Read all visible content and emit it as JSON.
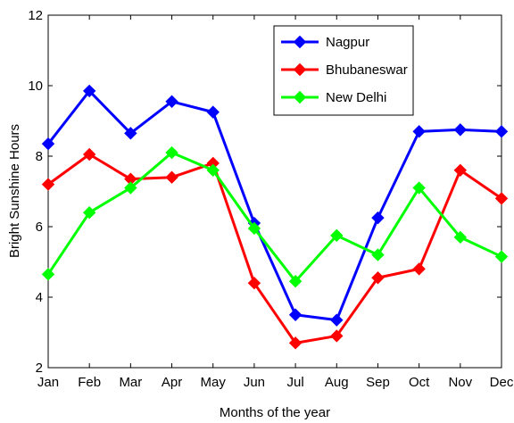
{
  "chart_data": {
    "type": "line",
    "xlabel": "Months of the year",
    "ylabel": "Bright Sunshine Hours",
    "categories": [
      "Jan",
      "Feb",
      "Mar",
      "Apr",
      "May",
      "Jun",
      "Jul",
      "Aug",
      "Sep",
      "Oct",
      "Nov",
      "Dec"
    ],
    "ylim": [
      2,
      12
    ],
    "yticks": [
      2,
      4,
      6,
      8,
      10,
      12
    ],
    "grid": false,
    "legend_position": "top-right",
    "marker": "diamond",
    "series": [
      {
        "name": "Nagpur",
        "color": "#0000ff",
        "values": [
          8.35,
          9.85,
          8.65,
          9.55,
          9.25,
          6.1,
          3.5,
          3.35,
          6.25,
          8.7,
          8.75,
          8.7
        ]
      },
      {
        "name": "Bhubaneswar",
        "color": "#ff0000",
        "values": [
          7.2,
          8.05,
          7.35,
          7.4,
          7.8,
          4.4,
          2.7,
          2.9,
          4.55,
          4.8,
          7.6,
          6.8
        ]
      },
      {
        "name": "New Delhi",
        "color": "#00ff00",
        "values": [
          4.65,
          6.4,
          7.1,
          8.1,
          7.6,
          5.95,
          4.45,
          5.75,
          5.2,
          7.1,
          5.7,
          5.15
        ]
      }
    ]
  }
}
